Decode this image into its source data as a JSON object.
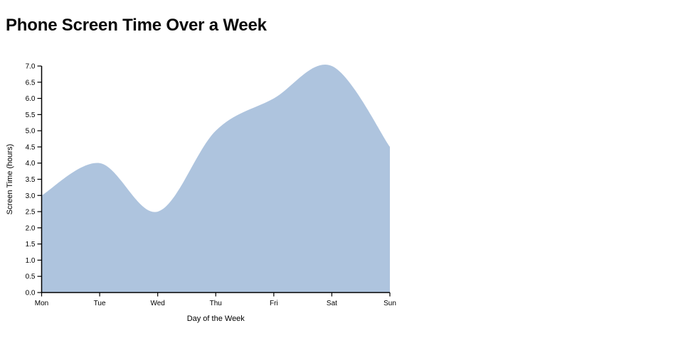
{
  "header": {
    "title": "Phone Screen Time Over a Week"
  },
  "chart_data": {
    "type": "area",
    "title": "Phone Screen Time Over a Week",
    "categories": [
      "Mon",
      "Tue",
      "Wed",
      "Thu",
      "Fri",
      "Sat",
      "Sun"
    ],
    "values": [
      3.0,
      4.0,
      2.5,
      5.0,
      6.0,
      7.0,
      4.5
    ],
    "xlabel": "Day of the Week",
    "ylabel": "Screen Time (hours)",
    "ylim": [
      0,
      7
    ],
    "ytick_step": 0.5,
    "ytick_decimals": 1,
    "grid": false,
    "legend": false,
    "smooth": true,
    "fill_color": "#aec4de",
    "axis_color": "#000000",
    "text_color": "#000000",
    "background_color": "#ffffff"
  }
}
